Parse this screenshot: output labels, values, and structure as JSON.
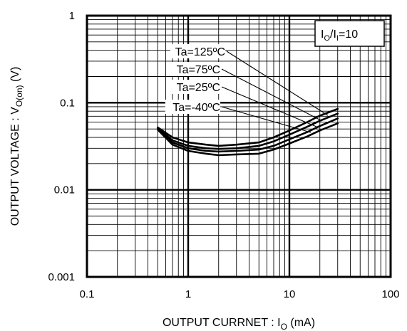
{
  "chart_data": {
    "type": "line",
    "title": "",
    "xlabel": {
      "main": "OUTPUT CURRNET : I",
      "sub": "O",
      "tail": " (mA)"
    },
    "ylabel": {
      "main": "OUTPUT VOLTAGE : V",
      "sub": "O(on)",
      "tail": " (V)"
    },
    "xscale": "log",
    "yscale": "log",
    "xlim": [
      0.1,
      100
    ],
    "ylim": [
      0.001,
      1
    ],
    "grid": true,
    "x_tick_labels": [
      "0.1",
      "1",
      "10",
      "100"
    ],
    "y_tick_labels": [
      "0.001",
      "0.01",
      "0.1",
      "1"
    ],
    "condition": {
      "main1": "I",
      "sub1": "O",
      "mid": "/I",
      "sub2": "I",
      "tail": "=10"
    },
    "series": [
      {
        "name": "Ta=125ºC",
        "x": [
          0.5,
          0.7,
          1,
          1.5,
          2,
          3,
          5,
          7,
          10,
          15,
          20,
          30
        ],
        "y": [
          0.052,
          0.04,
          0.035,
          0.033,
          0.032,
          0.033,
          0.035,
          0.04,
          0.048,
          0.06,
          0.071,
          0.085
        ]
      },
      {
        "name": "Ta=75ºC",
        "x": [
          0.5,
          0.7,
          1,
          1.5,
          2,
          3,
          5,
          7,
          10,
          15,
          20,
          30
        ],
        "y": [
          0.051,
          0.037,
          0.032,
          0.03,
          0.0295,
          0.03,
          0.032,
          0.036,
          0.043,
          0.053,
          0.062,
          0.075
        ]
      },
      {
        "name": "Ta=25ºC",
        "x": [
          0.5,
          0.7,
          1,
          1.5,
          2,
          3,
          5,
          7,
          10,
          15,
          20,
          30
        ],
        "y": [
          0.05,
          0.035,
          0.03,
          0.028,
          0.0275,
          0.028,
          0.029,
          0.032,
          0.038,
          0.046,
          0.054,
          0.066
        ]
      },
      {
        "name": "Ta=-40ºC",
        "x": [
          0.5,
          0.7,
          1,
          1.5,
          2,
          3,
          5,
          7,
          10,
          15,
          20,
          30
        ],
        "y": [
          0.049,
          0.033,
          0.028,
          0.026,
          0.025,
          0.0255,
          0.026,
          0.029,
          0.034,
          0.041,
          0.048,
          0.058
        ]
      }
    ]
  }
}
